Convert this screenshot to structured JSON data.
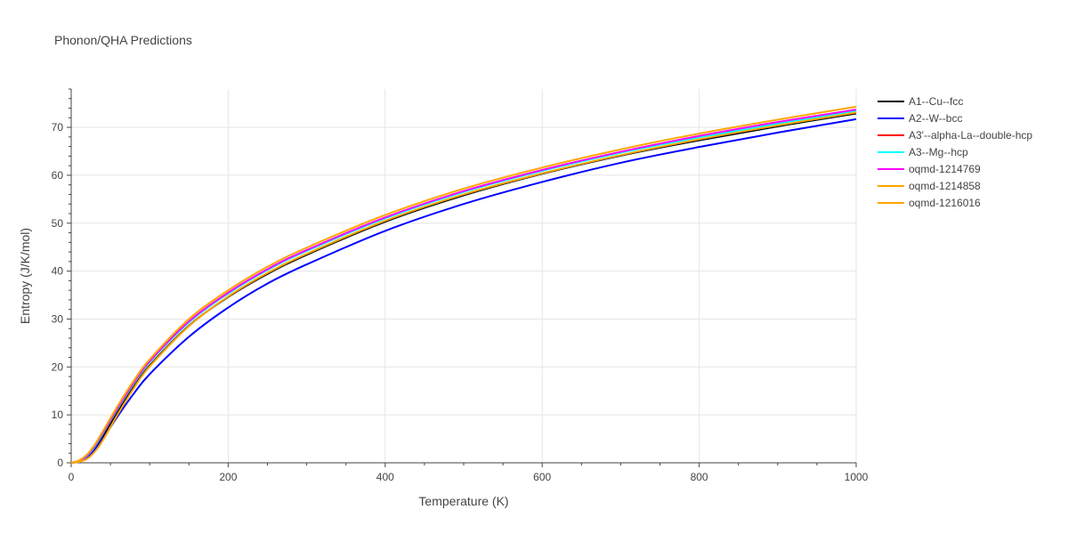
{
  "chart_data": {
    "type": "line",
    "title": "Phonon/QHA Predictions",
    "xlabel": "Temperature (K)",
    "ylabel": "Entropy (J/K/mol)",
    "xlim": [
      0,
      1000
    ],
    "ylim": [
      0,
      78
    ],
    "xticks": [
      0,
      200,
      400,
      600,
      800,
      1000
    ],
    "yticks": [
      0,
      10,
      20,
      30,
      40,
      50,
      60,
      70
    ],
    "grid": true,
    "legend_position": "right",
    "x": [
      0,
      10,
      20,
      30,
      40,
      60,
      80,
      100,
      150,
      200,
      250,
      300,
      400,
      500,
      600,
      700,
      800,
      900,
      1000
    ],
    "series": [
      {
        "name": "A1--Cu--fcc",
        "color": "#000000",
        "values": [
          0,
          0.3,
          1.2,
          3.0,
          5.4,
          10.8,
          15.9,
          20.3,
          28.6,
          34.6,
          39.4,
          43.4,
          50.3,
          55.8,
          60.3,
          64.1,
          67.3,
          70.2,
          72.9
        ]
      },
      {
        "name": "A2--W--bcc",
        "color": "#0000ff",
        "values": [
          0,
          0.3,
          1.1,
          2.7,
          4.9,
          9.9,
          14.5,
          18.5,
          26.3,
          32.4,
          37.4,
          41.4,
          48.4,
          54.0,
          58.6,
          62.6,
          65.9,
          68.9,
          71.7
        ]
      },
      {
        "name": "A3'--alpha-La--double-hcp",
        "color": "#ff0000",
        "values": [
          0,
          0.4,
          1.5,
          3.5,
          6.1,
          11.6,
          16.7,
          21.1,
          29.4,
          35.4,
          40.3,
          44.3,
          51.1,
          56.6,
          61.0,
          64.8,
          68.0,
          70.9,
          73.5
        ]
      },
      {
        "name": "A3--Mg--hcp",
        "color": "#00ffff",
        "values": [
          0,
          0.4,
          1.4,
          3.4,
          6.0,
          11.5,
          16.6,
          21.0,
          29.3,
          35.3,
          40.2,
          44.2,
          51.0,
          56.5,
          60.9,
          64.7,
          67.9,
          70.8,
          73.4
        ]
      },
      {
        "name": "oqmd-1214769",
        "color": "#ff00ff",
        "values": [
          0,
          0.4,
          1.5,
          3.6,
          6.2,
          11.7,
          16.8,
          21.2,
          29.5,
          35.5,
          40.4,
          44.4,
          51.2,
          56.7,
          61.1,
          64.9,
          68.2,
          71.1,
          73.7
        ]
      },
      {
        "name": "oqmd-1214858",
        "color": "#ffa500",
        "values": [
          0,
          0.2,
          0.8,
          2.3,
          4.6,
          10.3,
          15.6,
          20.1,
          28.5,
          34.7,
          39.6,
          43.6,
          50.5,
          56.0,
          60.4,
          64.2,
          67.5,
          70.4,
          73.1
        ]
      },
      {
        "name": "oqmd-1216016",
        "color": "#ffa500",
        "values": [
          0,
          0.5,
          1.7,
          3.8,
          6.5,
          12.1,
          17.2,
          21.6,
          30.0,
          36.0,
          40.9,
          44.9,
          51.7,
          57.2,
          61.6,
          65.4,
          68.7,
          71.6,
          74.3
        ]
      }
    ]
  }
}
